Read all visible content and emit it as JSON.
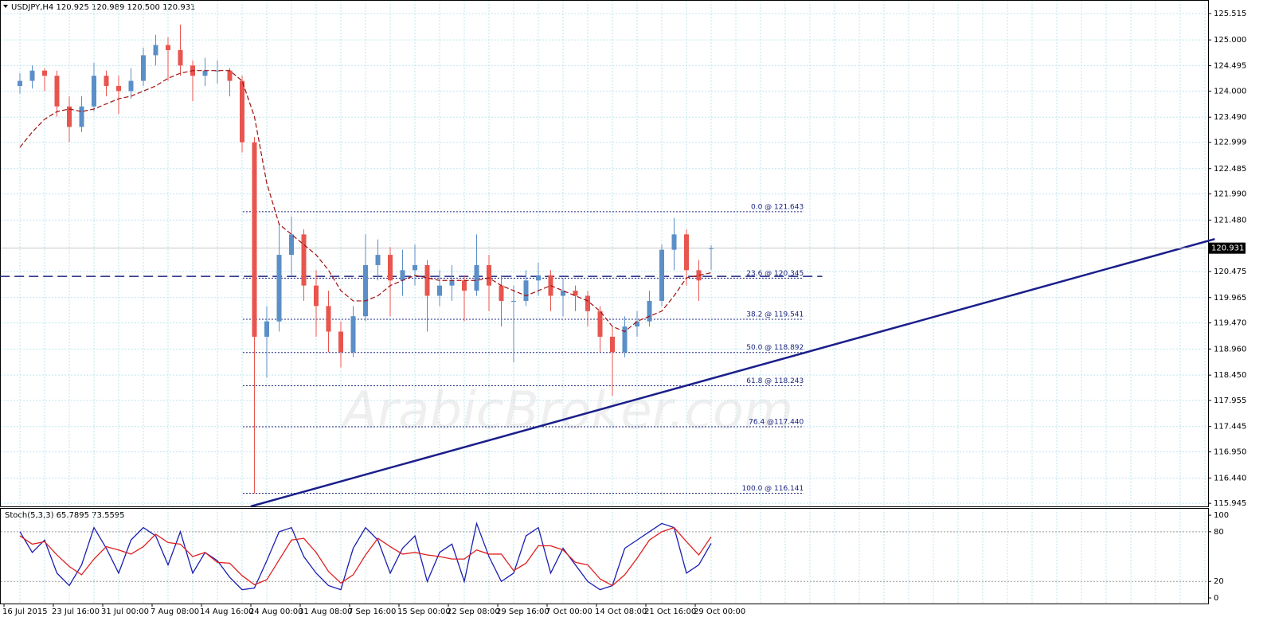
{
  "chart_data": [
    {
      "type": "candlestick",
      "title": "USDJPY,H4  120.925 120.989 120.500 120.931",
      "watermark": "ArabicBroker.com",
      "categories": [
        "16 Jul 2015",
        null,
        null,
        null,
        "23 Jul 16:00",
        null,
        null,
        null,
        "31 Jul 00:00",
        null,
        null,
        null,
        "7 Aug 08:00",
        null,
        null,
        null,
        "14 Aug 16:00",
        null,
        null,
        null,
        "24 Aug 00:00",
        null,
        null,
        null,
        "31 Aug 08:00",
        null,
        null,
        null,
        "7 Sep 16:00",
        null,
        null,
        null,
        "15 Sep 00:00",
        null,
        null,
        null,
        "22 Sep 08:00",
        null,
        null,
        null,
        "29 Sep 16:00",
        null,
        null,
        null,
        "7 Oct 00:00",
        null,
        null,
        null,
        "14 Oct 08:00",
        null,
        null,
        null,
        "21 Oct 16:00",
        null,
        null,
        null,
        "29 Oct 00:00"
      ],
      "open": [
        124.1,
        124.2,
        124.4,
        124.3,
        123.7,
        123.3,
        123.7,
        124.3,
        124.1,
        124.0,
        124.2,
        124.7,
        124.9,
        124.8,
        124.5,
        124.3,
        124.4,
        124.4,
        124.2,
        123.0,
        119.2,
        119.5,
        120.8,
        121.2,
        120.2,
        119.8,
        119.3,
        118.9,
        119.6,
        120.6,
        120.8,
        120.3,
        120.5,
        120.6,
        120.0,
        120.2,
        120.3,
        120.1,
        120.6,
        120.2,
        119.9,
        119.9,
        120.3,
        120.4,
        120.0,
        120.1,
        120.0,
        119.7,
        119.2,
        118.9,
        119.4,
        119.5,
        119.9,
        120.9,
        121.2,
        120.5,
        120.925
      ],
      "high": [
        124.35,
        124.5,
        124.45,
        124.4,
        123.9,
        123.9,
        124.55,
        124.4,
        124.3,
        124.45,
        124.85,
        125.1,
        125.05,
        125.3,
        124.6,
        124.65,
        124.6,
        124.45,
        124.3,
        123.1,
        119.8,
        121.4,
        121.55,
        121.3,
        120.5,
        120.1,
        119.5,
        119.8,
        121.2,
        121.1,
        120.95,
        120.9,
        121.0,
        120.7,
        120.5,
        120.6,
        120.4,
        121.2,
        120.8,
        120.4,
        120.2,
        120.5,
        120.65,
        120.5,
        120.35,
        120.2,
        120.1,
        119.8,
        119.4,
        119.6,
        119.7,
        120.1,
        121.0,
        121.52,
        121.3,
        120.7,
        120.989
      ],
      "low": [
        123.95,
        124.05,
        124.0,
        123.5,
        123.0,
        123.2,
        123.6,
        123.9,
        123.55,
        123.85,
        124.1,
        124.5,
        124.2,
        124.3,
        123.8,
        124.1,
        124.15,
        123.9,
        122.8,
        116.14,
        118.4,
        119.3,
        120.4,
        119.9,
        119.2,
        118.9,
        118.6,
        118.8,
        119.5,
        120.3,
        119.6,
        120.0,
        120.2,
        119.3,
        119.8,
        119.9,
        119.5,
        120.0,
        119.7,
        119.4,
        118.7,
        119.8,
        120.0,
        119.7,
        119.6,
        119.7,
        119.4,
        118.9,
        118.05,
        118.8,
        119.2,
        119.4,
        119.8,
        120.5,
        120.2,
        119.9,
        120.5
      ],
      "close": [
        124.2,
        124.4,
        124.3,
        123.7,
        123.3,
        123.7,
        124.3,
        124.1,
        124.0,
        124.2,
        124.7,
        124.9,
        124.8,
        124.5,
        124.3,
        124.4,
        124.4,
        124.2,
        123.0,
        119.2,
        119.5,
        120.8,
        121.2,
        120.2,
        119.8,
        119.3,
        118.9,
        119.6,
        120.6,
        120.8,
        120.3,
        120.5,
        120.6,
        120.0,
        120.2,
        120.3,
        120.1,
        120.6,
        120.2,
        119.9,
        119.9,
        120.3,
        120.4,
        120.0,
        120.1,
        120.0,
        119.7,
        119.2,
        118.9,
        119.4,
        119.5,
        119.9,
        120.9,
        121.2,
        120.5,
        120.3,
        120.931
      ],
      "up_color": "#5b8fc7",
      "down_color": "#e8554e",
      "ma": {
        "color": "#a01010",
        "values": [
          122.9,
          123.2,
          123.45,
          123.6,
          123.65,
          123.6,
          123.65,
          123.75,
          123.85,
          123.9,
          124.0,
          124.1,
          124.25,
          124.35,
          124.4,
          124.4,
          124.4,
          124.4,
          124.2,
          123.5,
          122.2,
          121.4,
          121.2,
          121.0,
          120.8,
          120.5,
          120.1,
          119.9,
          119.9,
          120.0,
          120.2,
          120.3,
          120.4,
          120.35,
          120.3,
          120.3,
          120.3,
          120.3,
          120.35,
          120.2,
          120.1,
          120.0,
          120.1,
          120.2,
          120.1,
          120.0,
          119.9,
          119.7,
          119.4,
          119.3,
          119.5,
          119.6,
          119.7,
          120.0,
          120.35,
          120.4,
          120.45
        ]
      },
      "fib": {
        "color": "#1a237e",
        "x": [
          18.06,
          63.5
        ],
        "levels": [
          {
            "value": 121.643,
            "label": "0.0 @ 121.643"
          },
          {
            "value": 120.345,
            "label": "23.6 @ 120.345"
          },
          {
            "value": 119.541,
            "label": "38.2 @ 119.541"
          },
          {
            "value": 118.892,
            "label": "50.0 @ 118.892"
          },
          {
            "value": 118.243,
            "label": "61.8 @ 118.243"
          },
          {
            "value": 117.44,
            "label": "76.4 @117.440"
          },
          {
            "value": 116.141,
            "label": "100.0 @ 116.141"
          }
        ]
      },
      "hline": {
        "value": 120.38,
        "x": [
          -1.6,
          65
        ],
        "color": "#1a237e"
      },
      "trendline": {
        "x": [
          18.7,
          96.8
        ],
        "y": [
          115.885,
          121.11
        ],
        "color": "#1a1f8a"
      },
      "last_price": {
        "value": 120.931,
        "label": "120.931"
      },
      "ylim": [
        115.885,
        125.78
      ],
      "yticks": [
        125.515,
        {
          "value": 125.0,
          "label": "125.000"
        },
        124.495,
        {
          "value": 124.0,
          "label": "124.000"
        },
        {
          "value": 123.49,
          "label": "123.490"
        },
        122.999,
        122.485,
        {
          "value": 121.99,
          "label": "121.990"
        },
        {
          "value": 121.48,
          "label": "121.480"
        },
        120.475,
        119.965,
        {
          "value": 119.47,
          "label": "119.470"
        },
        {
          "value": 118.96,
          "label": "118.960"
        },
        {
          "value": 118.45,
          "label": "118.450"
        },
        117.955,
        117.445,
        {
          "value": 116.95,
          "label": "116.950"
        },
        {
          "value": 116.44,
          "label": "116.440"
        },
        115.945
      ],
      "grid": true
    },
    {
      "type": "line",
      "title": "Stoch(5,3,3) 65.7895 73.5595",
      "series": [
        {
          "color": "#1a1fb0",
          "values": [
            80,
            55,
            70,
            30,
            15,
            40,
            85,
            60,
            30,
            70,
            85,
            75,
            40,
            80,
            30,
            55,
            45,
            25,
            10,
            12,
            45,
            80,
            85,
            50,
            30,
            15,
            10,
            60,
            85,
            70,
            30,
            60,
            75,
            20,
            55,
            65,
            20,
            90,
            50,
            20,
            30,
            75,
            85,
            30,
            60,
            40,
            20,
            10,
            15,
            60,
            70,
            80,
            90,
            85,
            30,
            40,
            66
          ]
        },
        {
          "color": "#e02020",
          "values": [
            75,
            65,
            68,
            52,
            38,
            28,
            47,
            62,
            58,
            53,
            62,
            77,
            67,
            65,
            50,
            55,
            43,
            42,
            27,
            16,
            22,
            46,
            70,
            72,
            55,
            32,
            18,
            28,
            52,
            72,
            62,
            53,
            55,
            52,
            50,
            47,
            47,
            58,
            53,
            53,
            33,
            42,
            63,
            63,
            58,
            43,
            40,
            23,
            15,
            28,
            48,
            70,
            80,
            85,
            68,
            52,
            74
          ]
        }
      ],
      "levels": [
        20,
        80
      ],
      "ylim": [
        -6.7,
        108.7
      ],
      "yticks": [
        0,
        20,
        80,
        100
      ]
    }
  ]
}
